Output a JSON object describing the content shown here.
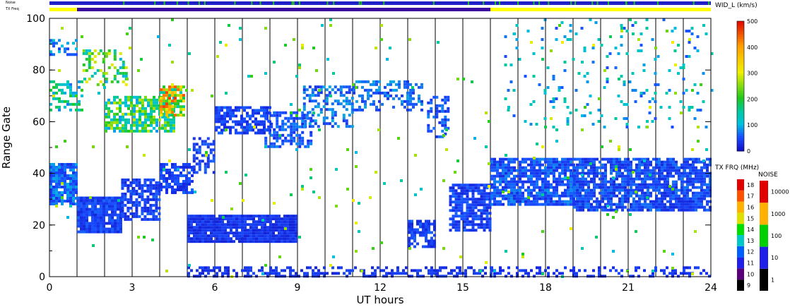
{
  "chart_data": {
    "type": "heatmap",
    "xlabel": "UT hours",
    "ylabel": "Range Gate",
    "xlim": [
      0,
      24
    ],
    "ylim": [
      0,
      100
    ],
    "xticks": [
      "0",
      "3",
      "6",
      "9",
      "12",
      "15",
      "18",
      "21",
      "24"
    ],
    "yticks": [
      "0",
      "20",
      "40",
      "60",
      "80",
      "100"
    ],
    "param_label": "WID_L (km/s)",
    "top_strips": {
      "noise_label": "Noise",
      "txfreq_label": "TX Freq",
      "txfreq_segments": [
        {
          "start": 0,
          "end": 1.0,
          "color": "#ffff00"
        },
        {
          "start": 1.0,
          "end": 16.0,
          "color": "#3a0aa0"
        },
        {
          "start": 16.0,
          "end": 24.0,
          "color": "#ffff00"
        }
      ]
    },
    "colorbar_width": {
      "ticks": [
        "0",
        "100",
        "200",
        "300",
        "400",
        "500"
      ],
      "range": [
        0,
        500
      ]
    },
    "colorbar_txfreq": {
      "title": "TX FRQ (MHz)",
      "ticks": [
        "9",
        "10",
        "11",
        "12",
        "13",
        "14",
        "15",
        "16",
        "17",
        "18"
      ],
      "colors": [
        "#000000",
        "#5a007a",
        "#2020e8",
        "#0060ff",
        "#00c8c8",
        "#00e000",
        "#e0e000",
        "#ffb000",
        "#ff5000",
        "#e00000"
      ]
    },
    "colorbar_noise": {
      "title": "NOISE",
      "ticks": [
        "1",
        "10",
        "100",
        "1000",
        "10000"
      ],
      "colors": [
        "#000000",
        "#2020e8",
        "#00d000",
        "#ffb000",
        "#e00000"
      ]
    },
    "blobs": [
      {
        "x0": 0.0,
        "x1": 1.0,
        "y0": 28,
        "y1": 44,
        "val": 60,
        "dens": 0.85
      },
      {
        "x0": 1.0,
        "x1": 2.6,
        "y0": 17,
        "y1": 31,
        "val": 40,
        "dens": 0.95
      },
      {
        "x0": 2.6,
        "x1": 4.0,
        "y0": 22,
        "y1": 38,
        "val": 40,
        "dens": 0.7
      },
      {
        "x0": 4.0,
        "x1": 5.2,
        "y0": 32,
        "y1": 44,
        "val": 40,
        "dens": 0.75
      },
      {
        "x0": 5.2,
        "x1": 6.0,
        "y0": 40,
        "y1": 54,
        "val": 40,
        "dens": 0.6
      },
      {
        "x0": 6.0,
        "x1": 8.0,
        "y0": 56,
        "y1": 66,
        "val": 40,
        "dens": 0.7
      },
      {
        "x0": 7.8,
        "x1": 9.5,
        "y0": 50,
        "y1": 64,
        "val": 50,
        "dens": 0.55
      },
      {
        "x0": 9.2,
        "x1": 11.0,
        "y0": 58,
        "y1": 74,
        "val": 60,
        "dens": 0.45
      },
      {
        "x0": 11.0,
        "x1": 13.5,
        "y0": 64,
        "y1": 76,
        "val": 60,
        "dens": 0.45
      },
      {
        "x0": 13.7,
        "x1": 14.5,
        "y0": 54,
        "y1": 70,
        "val": 50,
        "dens": 0.4
      },
      {
        "x0": 5.0,
        "x1": 9.0,
        "y0": 14,
        "y1": 24,
        "val": 30,
        "dens": 0.95
      },
      {
        "x0": 13.0,
        "x1": 14.0,
        "y0": 12,
        "y1": 22,
        "val": 40,
        "dens": 0.7
      },
      {
        "x0": 14.5,
        "x1": 16.0,
        "y0": 18,
        "y1": 36,
        "val": 40,
        "dens": 0.75
      },
      {
        "x0": 16.0,
        "x1": 19.0,
        "y0": 28,
        "y1": 46,
        "val": 50,
        "dens": 0.85
      },
      {
        "x0": 19.0,
        "x1": 24.0,
        "y0": 26,
        "y1": 46,
        "val": 45,
        "dens": 0.8
      },
      {
        "x0": 5.0,
        "x1": 16.0,
        "y0": 0,
        "y1": 4,
        "val": 30,
        "dens": 0.5
      },
      {
        "x0": 16.0,
        "x1": 24.0,
        "y0": 0,
        "y1": 4,
        "val": 30,
        "dens": 0.35
      },
      {
        "x0": 2.0,
        "x1": 4.5,
        "y0": 56,
        "y1": 70,
        "val": 180,
        "dens": 0.7
      },
      {
        "x0": 4.0,
        "x1": 4.9,
        "y0": 62,
        "y1": 74,
        "val": 300,
        "dens": 0.8
      },
      {
        "x0": 0.0,
        "x1": 1.2,
        "y0": 64,
        "y1": 76,
        "val": 140,
        "dens": 0.5
      },
      {
        "x0": 0.0,
        "x1": 1.0,
        "y0": 86,
        "y1": 92,
        "val": 80,
        "dens": 0.35
      },
      {
        "x0": 1.2,
        "x1": 2.8,
        "y0": 74,
        "y1": 88,
        "val": 200,
        "dens": 0.35
      },
      {
        "x0": 16.5,
        "x1": 24.0,
        "y0": 58,
        "y1": 100,
        "val": 100,
        "dens": 0.06
      },
      {
        "x0": 0.0,
        "x1": 24.0,
        "y0": 0,
        "y1": 100,
        "val": 200,
        "dens": 0.012
      }
    ]
  }
}
